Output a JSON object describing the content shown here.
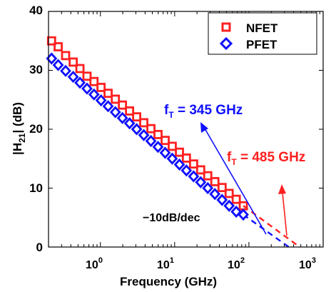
{
  "chart_data": {
    "type": "scatter",
    "title": "",
    "xlabel": "Frequency (GHz)",
    "ylabel": "|H21| (dB)",
    "xscale": "log",
    "xlim": [
      0.2,
      1000
    ],
    "ylim": [
      0,
      40
    ],
    "grid": false,
    "legend_position": "top-right",
    "x_ticks": [
      {
        "value": 1,
        "label": "10^0"
      },
      {
        "value": 10,
        "label": "10^1"
      },
      {
        "value": 100,
        "label": "10^2"
      },
      {
        "value": 1000,
        "label": "10^3"
      }
    ],
    "y_ticks": [
      0,
      10,
      20,
      30,
      40
    ],
    "series": [
      {
        "name": "NFET",
        "color": "#ff2020",
        "marker": "square",
        "x": [
          0.22,
          0.27,
          0.34,
          0.43,
          0.53,
          0.66,
          0.82,
          1.02,
          1.27,
          1.59,
          1.98,
          2.47,
          3.08,
          3.84,
          4.79,
          5.97,
          7.45,
          9.28,
          11.6,
          14.4,
          18.0,
          22.4,
          27.9,
          34.8,
          43.5,
          54.2,
          67.5,
          84.0
        ],
        "y": [
          35.0,
          34.0,
          32.5,
          31.4,
          30.3,
          29.0,
          28.1,
          27.1,
          26.1,
          25.1,
          24.1,
          23.1,
          22.1,
          21.1,
          20.1,
          19.1,
          18.1,
          17.1,
          16.1,
          15.1,
          14.1,
          13.1,
          12.1,
          11.1,
          10.1,
          9.1,
          8.1,
          7.0
        ]
      },
      {
        "name": "PFET",
        "color": "#1010ff",
        "marker": "diamond",
        "x": [
          0.22,
          0.27,
          0.34,
          0.43,
          0.53,
          0.66,
          0.82,
          1.02,
          1.27,
          1.59,
          1.98,
          2.47,
          3.08,
          3.84,
          4.79,
          5.97,
          7.45,
          9.28,
          11.6,
          14.4,
          18.0,
          22.4,
          27.9,
          34.8,
          43.5,
          54.2,
          67.5,
          84.0
        ],
        "y": [
          32.0,
          30.9,
          29.9,
          28.9,
          27.9,
          26.9,
          25.9,
          24.9,
          23.9,
          22.9,
          21.9,
          21.0,
          20.0,
          19.0,
          18.0,
          17.0,
          16.0,
          15.0,
          14.0,
          13.0,
          12.0,
          11.0,
          10.0,
          9.0,
          8.0,
          7.0,
          6.0,
          5.5
        ]
      }
    ],
    "fit_lines": [
      {
        "series": "NFET",
        "color": "#ff2020",
        "x": [
          84,
          485
        ],
        "y": [
          7.0,
          0
        ]
      },
      {
        "series": "PFET",
        "color": "#1010ff",
        "x": [
          84,
          345
        ],
        "y": [
          5.5,
          0
        ]
      }
    ],
    "annotations": [
      {
        "id": "ft-pfet",
        "label_main": "f",
        "label_sub": "T",
        "label_rest": " = 345 GHz",
        "color": "#1010ff"
      },
      {
        "id": "ft-nfet",
        "label_main": "f",
        "label_sub": "T",
        "label_rest": " = 485 GHz",
        "color": "#ff2020"
      },
      {
        "id": "slope",
        "text": "−10dB/dec",
        "color": "#000000"
      }
    ]
  },
  "labels": {
    "xlabel": "Frequency (GHz)",
    "ylabel_pre": "|H",
    "ylabel_sub": "21",
    "ylabel_post": "| (dB)",
    "legend_nfet": "NFET",
    "legend_pfet": "PFET",
    "y_ticks": [
      "0",
      "10",
      "20",
      "30",
      "40"
    ],
    "x_tick_base": "10",
    "x_tick_exps": [
      "0",
      "1",
      "2",
      "3"
    ],
    "ft_pfet_main": "f",
    "ft_pfet_sub": "T",
    "ft_pfet_rest": " = 345 GHz",
    "ft_nfet_main": "f",
    "ft_nfet_sub": "T",
    "ft_nfet_rest": " = 485 GHz",
    "slope": "−10dB/dec"
  }
}
